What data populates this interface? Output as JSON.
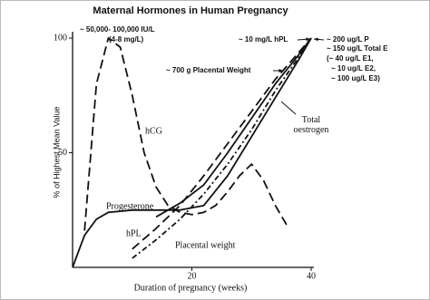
{
  "chart_data": {
    "type": "line",
    "title": "Maternal Hormones in Human Pregnancy",
    "xlabel": "Duration of pregnancy (weeks)",
    "ylabel": "% of Highest Mean Value",
    "xlim": [
      0,
      40
    ],
    "ylim": [
      0,
      100
    ],
    "xticks": [
      20,
      40
    ],
    "yticks": [
      50,
      100
    ],
    "series": [
      {
        "name": "hCG",
        "color": "#111111",
        "style": "dashed",
        "x": [
          2,
          4,
          6,
          8,
          10,
          12,
          14,
          16,
          18,
          20,
          22,
          24,
          26,
          28,
          30,
          32,
          34,
          36
        ],
        "values": [
          16,
          80,
          100,
          96,
          75,
          50,
          35,
          27,
          24,
          23,
          24,
          27,
          33,
          40,
          45,
          38,
          27,
          18
        ]
      },
      {
        "name": "Progesterone",
        "color": "#111111",
        "style": "solid",
        "x": [
          0,
          2,
          4,
          6,
          10,
          14,
          18,
          22,
          26,
          30,
          34,
          38,
          40
        ],
        "values": [
          0,
          14,
          21,
          24,
          25,
          25,
          25,
          27,
          40,
          57,
          74,
          91,
          100
        ]
      },
      {
        "name": "hPL",
        "color": "#111111",
        "style": "dashed",
        "x": [
          10,
          14,
          18,
          22,
          26,
          30,
          34,
          38,
          40
        ],
        "values": [
          8,
          17,
          27,
          40,
          54,
          68,
          82,
          94,
          100
        ]
      },
      {
        "name": "Placental weight",
        "color": "#111111",
        "style": "dotdash",
        "x": [
          10,
          14,
          18,
          22,
          26,
          30,
          34,
          38,
          40
        ],
        "values": [
          4,
          12,
          21,
          32,
          45,
          60,
          77,
          92,
          100
        ]
      },
      {
        "name": "Total oestrogen",
        "color": "#111111",
        "style": "solid",
        "x": [
          14,
          18,
          22,
          26,
          30,
          34,
          38,
          40
        ],
        "values": [
          22,
          28,
          36,
          50,
          65,
          80,
          93,
          100
        ]
      }
    ],
    "annotations": [
      "~ 50,000- 100,000 IU/L",
      "(4-8 mg/L)",
      "~ 10 mg/L hPL",
      "~ 200 ug/L P",
      "~ 150 ug/L Total E",
      "(~ 40 ug/L E1,",
      "~ 10 ug/L E2,",
      "~ 100 ug/L E3)",
      "~ 700 g Placental Weight"
    ]
  }
}
